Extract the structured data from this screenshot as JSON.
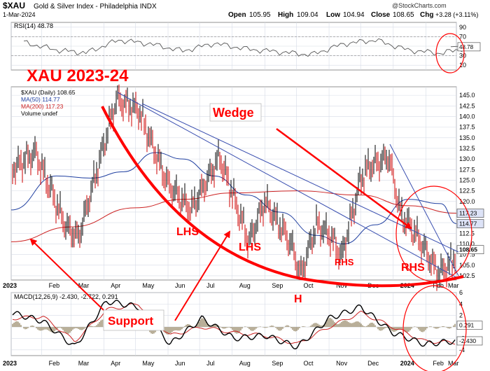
{
  "header": {
    "symbol": "$XAU",
    "name": "Gold & Silver Index - Philadelphia INDX",
    "date": "1-Mar-2024",
    "open_label": "Open",
    "open": "105.95",
    "high_label": "High",
    "high": "109.04",
    "low_label": "Low",
    "low": "104.94",
    "close_label": "Close",
    "close": "108.65",
    "chg_label": "Chg",
    "chg": "+3.28 (+3.11%)",
    "watermark": "@StockCharts.com"
  },
  "annotations": {
    "title": "XAU 2023-24",
    "wedge": "Wedge",
    "lhs1": "LHS",
    "lhs2": "LHS",
    "h": "H",
    "rhs_small": "RHS",
    "rhs_big": "RHS",
    "support": "Support"
  },
  "colors": {
    "price": "#000000",
    "up": "#000000",
    "down": "#cc0000",
    "ma50": "#1f3fa0",
    "ma200": "#cc2222",
    "annotation_red": "#ff0000",
    "trendline": "#3a4fb0",
    "grid": "#d6dbe6"
  },
  "chart_data": [
    {
      "type": "line",
      "title": "RSI(14) 48.78",
      "legend": "RSI(14) 48.78",
      "ylim": [
        0,
        100
      ],
      "y_ticks": [
        "90",
        "70",
        "50",
        "30",
        "10"
      ],
      "last_value_label": "48.78",
      "grid": true,
      "x": [
        "2023-01",
        "2023-02",
        "2023-03",
        "2023-04",
        "2023-05",
        "2023-06",
        "2023-07",
        "2023-08",
        "2023-09",
        "2023-10",
        "2023-11",
        "2023-12",
        "2024-01",
        "2024-02",
        "2024-03"
      ],
      "series": [
        {
          "name": "RSI(14)",
          "values": [
            58,
            42,
            36,
            63,
            55,
            40,
            56,
            44,
            38,
            32,
            55,
            63,
            42,
            35,
            48.78
          ]
        }
      ]
    },
    {
      "type": "line",
      "title": "$XAU (Daily) 108.65",
      "legend": [
        "$XAU (Daily) 108.65",
        "MA(50) 114.77",
        "MA(200) 117.23",
        "Volume undef"
      ],
      "ylim": [
        101.5,
        147
      ],
      "y_ticks": [
        "145.0",
        "142.5",
        "140.0",
        "137.5",
        "135.0",
        "132.5",
        "130.0",
        "127.5",
        "125.0",
        "122.5",
        "120.0",
        "117.5",
        "115.0",
        "112.5",
        "110.0",
        "107.5",
        "105.0",
        "102.5"
      ],
      "last_labels": [
        "117.23",
        "114.77",
        "108.65"
      ],
      "x_ticks": [
        "2023",
        "Feb",
        "Mar",
        "Apr",
        "May",
        "Jun",
        "Jul",
        "Aug",
        "Sep",
        "Oct",
        "Nov",
        "Dec",
        "2024",
        "Feb",
        "Mar"
      ],
      "grid": true,
      "series": [
        {
          "name": "$XAU (Daily)",
          "x": [
            "2023-01-03",
            "2023-01-26",
            "2023-02-24",
            "2023-03-08",
            "2023-04-13",
            "2023-05-04",
            "2023-06-01",
            "2023-06-23",
            "2023-07-20",
            "2023-08-17",
            "2023-09-01",
            "2023-09-26",
            "2023-10-05",
            "2023-10-20",
            "2023-11-02",
            "2023-11-13",
            "2023-12-01",
            "2023-12-08",
            "2023-12-28",
            "2024-01-08",
            "2024-01-22",
            "2024-02-13",
            "2024-02-26",
            "2024-03-01"
          ],
          "values": [
            127.5,
            131.5,
            114.0,
            111.5,
            144.0,
            141.5,
            124.0,
            118.0,
            130.5,
            110.5,
            120.0,
            110.0,
            102.5,
            114.5,
            112.0,
            107.0,
            125.0,
            128.0,
            130.5,
            117.0,
            112.5,
            103.0,
            105.5,
            108.65
          ]
        },
        {
          "name": "MA(50)",
          "x": [
            "2023-01-03",
            "2023-02-15",
            "2023-03-20",
            "2023-04-20",
            "2023-05-20",
            "2023-06-15",
            "2023-07-15",
            "2023-08-15",
            "2023-09-15",
            "2023-10-20",
            "2023-11-15",
            "2023-12-15",
            "2024-01-15",
            "2024-02-15",
            "2024-03-01"
          ],
          "values": [
            118.0,
            126.0,
            125.5,
            127.0,
            131.5,
            130.0,
            126.0,
            121.5,
            117.5,
            112.0,
            110.0,
            114.5,
            120.5,
            119.5,
            114.77
          ]
        },
        {
          "name": "MA(200)",
          "x": [
            "2023-01-03",
            "2023-03-01",
            "2023-05-01",
            "2023-06-15",
            "2023-08-01",
            "2023-10-01",
            "2023-12-01",
            "2024-01-15",
            "2024-03-01"
          ],
          "values": [
            110.5,
            114.0,
            118.5,
            120.5,
            122.0,
            122.5,
            121.5,
            119.0,
            117.23
          ]
        }
      ]
    },
    {
      "type": "line",
      "title": "MACD(12,26,9) -2.430, -2.722, 0.291",
      "legend": "MACD(12,26,9) -2.430, -2.722, 0.291",
      "ylim": [
        -5,
        6
      ],
      "y_ticks": [
        "6",
        "4",
        "2",
        "0",
        "-2",
        "-4"
      ],
      "last_labels": [
        "0.291",
        "-2.430"
      ],
      "x_ticks": [
        "2023",
        "Feb",
        "Mar",
        "Apr",
        "May",
        "Jun",
        "Jul",
        "Aug",
        "Sep",
        "Oct",
        "Nov",
        "Dec",
        "2024",
        "Feb",
        "Mar"
      ],
      "grid": true,
      "series": [
        {
          "name": "MACD",
          "values": [
            2.5,
            1.0,
            -3.5,
            4.5,
            3.5,
            -3.0,
            1.5,
            -2.0,
            -1.5,
            -3.5,
            1.5,
            3.5,
            -1.0,
            -3.0,
            -2.43
          ]
        },
        {
          "name": "Signal",
          "values": [
            1.5,
            1.8,
            -2.5,
            3.0,
            4.0,
            -1.5,
            0.0,
            -1.0,
            -1.5,
            -3.0,
            0.0,
            2.5,
            0.0,
            -2.5,
            -2.722
          ]
        },
        {
          "name": "Histogram",
          "values": [
            0.8,
            -0.6,
            -1.0,
            1.5,
            -0.4,
            -1.2,
            1.2,
            -0.8,
            0.0,
            -0.4,
            1.4,
            0.8,
            -0.9,
            -0.5,
            0.291
          ]
        }
      ]
    }
  ]
}
